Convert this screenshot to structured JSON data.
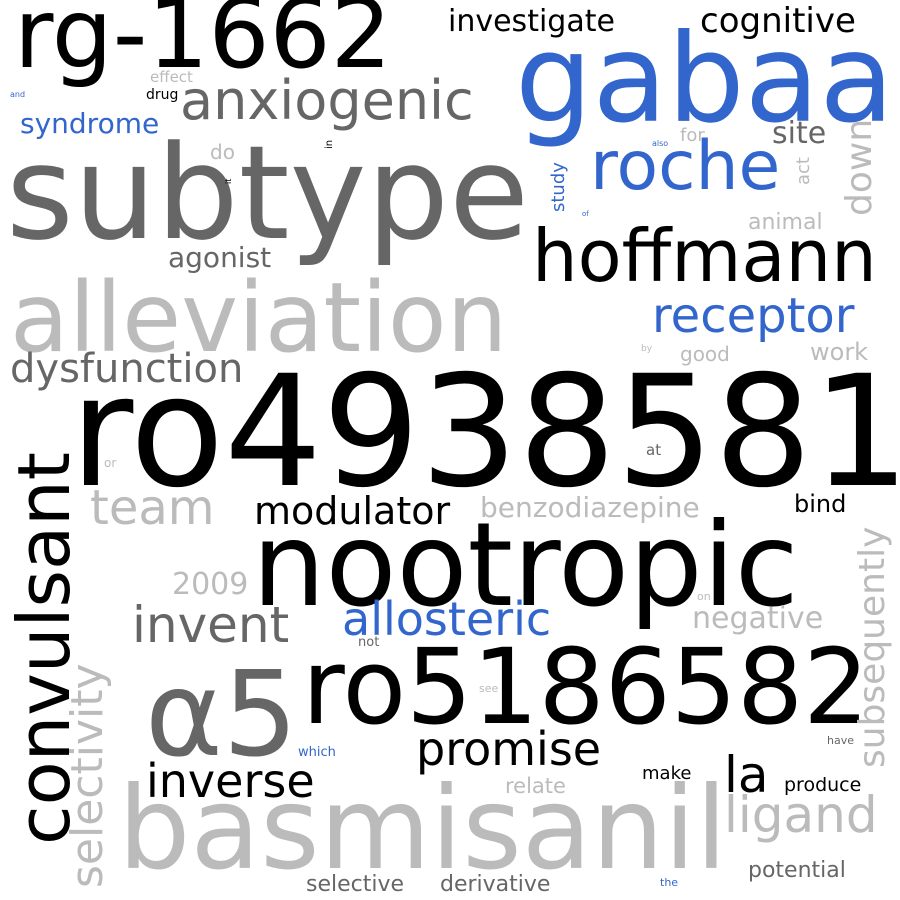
{
  "colors": {
    "black": "#000000",
    "dark_gray": "#666666",
    "light_gray": "#bbbbbb",
    "blue": "#3366cc",
    "background": "#ffffff"
  },
  "words": [
    {
      "id": "rg1662",
      "text": "rg-1662",
      "color": "#000000"
    },
    {
      "id": "gabaa",
      "text": "gabaa",
      "color": "#3366cc"
    },
    {
      "id": "subtype",
      "text": "subtype",
      "color": "#666666"
    },
    {
      "id": "ro4938581",
      "text": "ro4938581",
      "color": "#000000"
    },
    {
      "id": "nootropic",
      "text": "nootropic",
      "color": "#000000"
    },
    {
      "id": "alleviation",
      "text": "alleviation",
      "color": "#bbbbbb"
    },
    {
      "id": "basmisanil",
      "text": "basmisanil",
      "color": "#bbbbbb"
    },
    {
      "id": "ro5186582",
      "text": "ro5186582",
      "color": "#000000"
    },
    {
      "id": "a5",
      "text": "α5",
      "color": "#666666"
    },
    {
      "id": "convulsant",
      "text": "convulsant",
      "color": "#000000"
    },
    {
      "id": "hoffmann",
      "text": "hoffmann",
      "color": "#000000"
    },
    {
      "id": "roche",
      "text": "roche",
      "color": "#3366cc"
    },
    {
      "id": "anxiogenic",
      "text": "anxiogenic",
      "color": "#666666"
    },
    {
      "id": "receptor",
      "text": "receptor",
      "color": "#3366cc"
    },
    {
      "id": "selectivity",
      "text": "selectivity",
      "color": "#bbbbbb"
    },
    {
      "id": "dysfunction",
      "text": "dysfunction",
      "color": "#666666"
    },
    {
      "id": "team",
      "text": "team",
      "color": "#bbbbbb"
    },
    {
      "id": "modulator",
      "text": "modulator",
      "color": "#000000"
    },
    {
      "id": "allosteric",
      "text": "allosteric",
      "color": "#3366cc"
    },
    {
      "id": "invent",
      "text": "invent",
      "color": "#666666"
    },
    {
      "id": "promise",
      "text": "promise",
      "color": "#000000"
    },
    {
      "id": "inverse",
      "text": "inverse",
      "color": "#000000"
    },
    {
      "id": "la",
      "text": "la",
      "color": "#000000"
    },
    {
      "id": "ligand",
      "text": "ligand",
      "color": "#bbbbbb"
    },
    {
      "id": "subsequently",
      "text": "subsequently",
      "color": "#bbbbbb"
    },
    {
      "id": "investigate",
      "text": "investigate",
      "color": "#000000"
    },
    {
      "id": "cognitive",
      "text": "cognitive",
      "color": "#000000"
    },
    {
      "id": "syndrome",
      "text": "syndrome",
      "color": "#3366cc"
    },
    {
      "id": "site",
      "text": "site",
      "color": "#666666"
    },
    {
      "id": "down",
      "text": "down",
      "color": "#bbbbbb"
    },
    {
      "id": "agonist",
      "text": "agonist",
      "color": "#666666"
    },
    {
      "id": "benzodiazepine",
      "text": "benzodiazepine",
      "color": "#bbbbbb"
    },
    {
      "id": "year2009",
      "text": "2009",
      "color": "#bbbbbb"
    },
    {
      "id": "negative",
      "text": "negative",
      "color": "#bbbbbb"
    },
    {
      "id": "bind",
      "text": "bind",
      "color": "#000000"
    },
    {
      "id": "work",
      "text": "work",
      "color": "#bbbbbb"
    },
    {
      "id": "animal",
      "text": "animal",
      "color": "#bbbbbb"
    },
    {
      "id": "good",
      "text": "good",
      "color": "#bbbbbb"
    },
    {
      "id": "study",
      "text": "study",
      "color": "#3366cc"
    },
    {
      "id": "act",
      "text": "act",
      "color": "#bbbbbb"
    },
    {
      "id": "for",
      "text": "for",
      "color": "#bbbbbb"
    },
    {
      "id": "do",
      "text": "do",
      "color": "#bbbbbb"
    },
    {
      "id": "effect",
      "text": "effect",
      "color": "#bbbbbb"
    },
    {
      "id": "drug",
      "text": "drug",
      "color": "#000000"
    },
    {
      "id": "and",
      "text": "and",
      "color": "#3366cc"
    },
    {
      "id": "in",
      "text": "in",
      "color": "#000000"
    },
    {
      "id": "it",
      "text": "it",
      "color": "#000000"
    },
    {
      "id": "also",
      "text": "also",
      "color": "#3366cc"
    },
    {
      "id": "of",
      "text": "of",
      "color": "#3366cc"
    },
    {
      "id": "by",
      "text": "by",
      "color": "#bbbbbb"
    },
    {
      "id": "or",
      "text": "or",
      "color": "#bbbbbb"
    },
    {
      "id": "at",
      "text": "at",
      "color": "#666666"
    },
    {
      "id": "on",
      "text": "on",
      "color": "#bbbbbb"
    },
    {
      "id": "not",
      "text": "not",
      "color": "#666666"
    },
    {
      "id": "see",
      "text": "see",
      "color": "#bbbbbb"
    },
    {
      "id": "which",
      "text": "which",
      "color": "#3366cc"
    },
    {
      "id": "have",
      "text": "have",
      "color": "#666666"
    },
    {
      "id": "make",
      "text": "make",
      "color": "#000000"
    },
    {
      "id": "produce",
      "text": "produce",
      "color": "#000000"
    },
    {
      "id": "relate",
      "text": "relate",
      "color": "#bbbbbb"
    },
    {
      "id": "potential",
      "text": "potential",
      "color": "#666666"
    },
    {
      "id": "selective",
      "text": "selective",
      "color": "#666666"
    },
    {
      "id": "derivative",
      "text": "derivative",
      "color": "#666666"
    },
    {
      "id": "the",
      "text": "the",
      "color": "#3366cc"
    }
  ]
}
